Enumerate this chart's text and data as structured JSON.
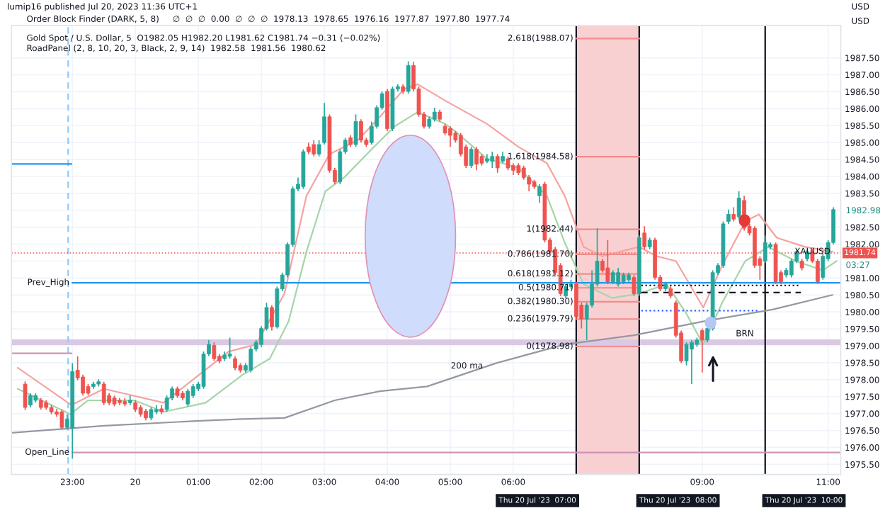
{
  "chart_data": {
    "type": "candlestick",
    "title": "Gold Spot / U.S. Dollar, 5  O1982.05 H1982.20 L1981.62 C1981.74 −0.31 (−0.02%)",
    "subtitle": "RoadPanel (2, 8, 10, 20, 3, Black, 2, 9, 14)  1982.58  1981.56  1980.62",
    "x": [
      "2023-07-19T22:15",
      "2023-07-19T22:20",
      "2023-07-19T22:25",
      "2023-07-19T22:30",
      "2023-07-19T22:35",
      "2023-07-19T22:40",
      "2023-07-19T22:45",
      "2023-07-19T22:50",
      "2023-07-19T22:55",
      "2023-07-19T23:00",
      "2023-07-19T23:05",
      "2023-07-19T23:10",
      "2023-07-19T23:15",
      "2023-07-19T23:20",
      "2023-07-19T23:25",
      "2023-07-19T23:30",
      "2023-07-19T23:35",
      "2023-07-19T23:40",
      "2023-07-19T23:45",
      "2023-07-19T23:50",
      "2023-07-19T23:55",
      "2023-07-20T00:00",
      "2023-07-20T00:05",
      "2023-07-20T00:10",
      "2023-07-20T00:15",
      "2023-07-20T00:20",
      "2023-07-20T00:25",
      "2023-07-20T00:30",
      "2023-07-20T00:35",
      "2023-07-20T00:40",
      "2023-07-20T00:45",
      "2023-07-20T00:50",
      "2023-07-20T00:55",
      "2023-07-20T01:00",
      "2023-07-20T01:05",
      "2023-07-20T01:10",
      "2023-07-20T01:15",
      "2023-07-20T01:20",
      "2023-07-20T01:25",
      "2023-07-20T01:30",
      "2023-07-20T01:35",
      "2023-07-20T01:40",
      "2023-07-20T01:45",
      "2023-07-20T01:50",
      "2023-07-20T01:55",
      "2023-07-20T02:00",
      "2023-07-20T02:05",
      "2023-07-20T02:10",
      "2023-07-20T02:15",
      "2023-07-20T02:20",
      "2023-07-20T02:25",
      "2023-07-20T02:30",
      "2023-07-20T02:35",
      "2023-07-20T02:40",
      "2023-07-20T02:45",
      "2023-07-20T02:50",
      "2023-07-20T02:55",
      "2023-07-20T03:00",
      "2023-07-20T03:05",
      "2023-07-20T03:10",
      "2023-07-20T03:15",
      "2023-07-20T03:20",
      "2023-07-20T03:25",
      "2023-07-20T03:30",
      "2023-07-20T03:35",
      "2023-07-20T03:40",
      "2023-07-20T03:45",
      "2023-07-20T03:50",
      "2023-07-20T03:55",
      "2023-07-20T04:00",
      "2023-07-20T04:05",
      "2023-07-20T04:10",
      "2023-07-20T04:15",
      "2023-07-20T04:20",
      "2023-07-20T04:25",
      "2023-07-20T04:30",
      "2023-07-20T04:35",
      "2023-07-20T04:40",
      "2023-07-20T04:45",
      "2023-07-20T04:50",
      "2023-07-20T04:55",
      "2023-07-20T05:00",
      "2023-07-20T05:05",
      "2023-07-20T05:10",
      "2023-07-20T05:15",
      "2023-07-20T05:20",
      "2023-07-20T05:25",
      "2023-07-20T05:30",
      "2023-07-20T05:35",
      "2023-07-20T05:40",
      "2023-07-20T05:45",
      "2023-07-20T05:50",
      "2023-07-20T05:55",
      "2023-07-20T06:00",
      "2023-07-20T06:05",
      "2023-07-20T06:10",
      "2023-07-20T06:15",
      "2023-07-20T06:20",
      "2023-07-20T06:25",
      "2023-07-20T06:30",
      "2023-07-20T06:35",
      "2023-07-20T06:40",
      "2023-07-20T06:45",
      "2023-07-20T06:50",
      "2023-07-20T06:55",
      "2023-07-20T07:00",
      "2023-07-20T07:05",
      "2023-07-20T07:10",
      "2023-07-20T07:15",
      "2023-07-20T07:20",
      "2023-07-20T07:25",
      "2023-07-20T07:30",
      "2023-07-20T07:35",
      "2023-07-20T07:40",
      "2023-07-20T07:45",
      "2023-07-20T07:50",
      "2023-07-20T07:55",
      "2023-07-20T08:00",
      "2023-07-20T08:05",
      "2023-07-20T08:10",
      "2023-07-20T08:15",
      "2023-07-20T08:20",
      "2023-07-20T08:25",
      "2023-07-20T08:30",
      "2023-07-20T08:35",
      "2023-07-20T08:40",
      "2023-07-20T08:45",
      "2023-07-20T08:50",
      "2023-07-20T08:55",
      "2023-07-20T09:00",
      "2023-07-20T09:05",
      "2023-07-20T09:10",
      "2023-07-20T09:15",
      "2023-07-20T09:20",
      "2023-07-20T09:25",
      "2023-07-20T09:30",
      "2023-07-20T09:35",
      "2023-07-20T09:40",
      "2023-07-20T09:45",
      "2023-07-20T09:50",
      "2023-07-20T09:55",
      "2023-07-20T10:00",
      "2023-07-20T10:05",
      "2023-07-20T10:10",
      "2023-07-20T10:15",
      "2023-07-20T10:20",
      "2023-07-20T10:25",
      "2023-07-20T10:30",
      "2023-07-20T10:35",
      "2023-07-20T10:40",
      "2023-07-20T10:45",
      "2023-07-20T10:50",
      "2023-07-20T10:55",
      "2023-07-20T11:00",
      "2023-07-20T11:05"
    ],
    "ohlc": [
      [
        1977.87,
        1977.95,
        1977.1,
        1977.18
      ],
      [
        1977.25,
        1977.6,
        1977.18,
        1977.53
      ],
      [
        1977.39,
        1977.6,
        1977.32,
        1977.53
      ],
      [
        1977.39,
        1977.46,
        1977.12,
        1977.18
      ],
      [
        1977.32,
        1977.39,
        1977.12,
        1977.18
      ],
      [
        1977.18,
        1977.25,
        1976.98,
        1977.05
      ],
      [
        1977.05,
        1977.14,
        1976.91,
        1976.98
      ],
      [
        1977.05,
        1977.12,
        1976.52,
        1976.59
      ],
      [
        1976.59,
        1976.98,
        1976.52,
        1976.84
      ],
      [
        1976.57,
        1978.49,
        1975.67,
        1978.24
      ],
      [
        1978.28,
        1978.69,
        1977.98,
        1978.05
      ],
      [
        1978.08,
        1978.15,
        1977.53,
        1977.6
      ],
      [
        1977.8,
        1977.87,
        1977.53,
        1977.6
      ],
      [
        1977.8,
        1977.94,
        1977.73,
        1977.87
      ],
      [
        1977.87,
        1978.01,
        1977.8,
        1977.94
      ],
      [
        1977.87,
        1977.94,
        1977.25,
        1977.32
      ],
      [
        1977.53,
        1977.6,
        1977.25,
        1977.32
      ],
      [
        1977.46,
        1977.53,
        1977.21,
        1977.28
      ],
      [
        1977.39,
        1977.46,
        1977.25,
        1977.32
      ],
      [
        1977.36,
        1977.46,
        1977.21,
        1977.28
      ],
      [
        1977.32,
        1977.53,
        1977.25,
        1977.39
      ],
      [
        1977.32,
        1977.39,
        1977.05,
        1977.12
      ],
      [
        1977.18,
        1977.25,
        1976.91,
        1976.98
      ],
      [
        1977.07,
        1977.14,
        1976.8,
        1976.87
      ],
      [
        1976.87,
        1977.18,
        1976.8,
        1977.12
      ],
      [
        1977.05,
        1977.25,
        1976.98,
        1977.12
      ],
      [
        1977.14,
        1977.25,
        1976.98,
        1977.05
      ],
      [
        1977.12,
        1977.53,
        1977.05,
        1977.46
      ],
      [
        1977.46,
        1977.8,
        1977.39,
        1977.73
      ],
      [
        1977.73,
        1977.8,
        1977.46,
        1977.53
      ],
      [
        1977.6,
        1977.66,
        1977.39,
        1977.46
      ],
      [
        1977.28,
        1977.73,
        1977.21,
        1977.66
      ],
      [
        1977.53,
        1977.87,
        1977.46,
        1977.8
      ],
      [
        1977.73,
        1977.94,
        1977.66,
        1977.87
      ],
      [
        1977.8,
        1978.83,
        1977.73,
        1978.76
      ],
      [
        1978.76,
        1979.17,
        1978.69,
        1979.04
      ],
      [
        1979.01,
        1979.1,
        1978.55,
        1978.62
      ],
      [
        1978.69,
        1978.76,
        1978.49,
        1978.55
      ],
      [
        1978.62,
        1978.83,
        1978.55,
        1978.73
      ],
      [
        1978.69,
        1979.24,
        1978.62,
        1978.76
      ],
      [
        1978.62,
        1978.69,
        1978.28,
        1978.35
      ],
      [
        1978.42,
        1978.49,
        1978.21,
        1978.28
      ],
      [
        1978.28,
        1978.49,
        1978.21,
        1978.42
      ],
      [
        1978.28,
        1978.97,
        1978.21,
        1978.9
      ],
      [
        1978.9,
        1979.17,
        1978.83,
        1979.1
      ],
      [
        1979.04,
        1979.58,
        1978.97,
        1979.51
      ],
      [
        1979.51,
        1980.27,
        1979.45,
        1980.13
      ],
      [
        1980.13,
        1980.2,
        1979.45,
        1979.56
      ],
      [
        1979.56,
        1980.75,
        1979.51,
        1980.68
      ],
      [
        1980.68,
        1981.16,
        1980.61,
        1981.09
      ],
      [
        1981.09,
        1982.05,
        1981.02,
        1981.99
      ],
      [
        1981.99,
        1983.7,
        1981.92,
        1983.63
      ],
      [
        1983.63,
        1983.97,
        1983.56,
        1983.77
      ],
      [
        1983.7,
        1984.8,
        1983.63,
        1984.73
      ],
      [
        1984.87,
        1985.0,
        1984.66,
        1984.73
      ],
      [
        1984.94,
        1985.07,
        1984.59,
        1984.66
      ],
      [
        1984.66,
        1985.07,
        1984.59,
        1984.94
      ],
      [
        1985.0,
        1986.17,
        1984.94,
        1985.76
      ],
      [
        1985.76,
        1985.83,
        1984.11,
        1984.18
      ],
      [
        1984.18,
        1984.25,
        1983.77,
        1983.84
      ],
      [
        1983.84,
        1984.8,
        1983.77,
        1984.73
      ],
      [
        1984.73,
        1985.14,
        1984.66,
        1985.07
      ],
      [
        1985.14,
        1985.21,
        1984.87,
        1984.94
      ],
      [
        1984.94,
        1985.83,
        1984.87,
        1985.62
      ],
      [
        1985.62,
        1985.69,
        1985.0,
        1985.07
      ],
      [
        1985.07,
        1985.14,
        1984.87,
        1984.94
      ],
      [
        1985.0,
        1985.62,
        1984.94,
        1985.48
      ],
      [
        1985.48,
        1986.1,
        1985.41,
        1986.03
      ],
      [
        1986.03,
        1986.51,
        1985.97,
        1986.44
      ],
      [
        1986.51,
        1986.58,
        1985.34,
        1985.41
      ],
      [
        1985.41,
        1986.65,
        1985.34,
        1986.58
      ],
      [
        1986.58,
        1986.72,
        1986.51,
        1986.65
      ],
      [
        1986.65,
        1986.72,
        1986.44,
        1986.51
      ],
      [
        1986.51,
        1987.4,
        1986.44,
        1987.27
      ],
      [
        1987.27,
        1987.38,
        1986.51,
        1986.58
      ],
      [
        1986.58,
        1986.65,
        1985.76,
        1985.83
      ],
      [
        1985.83,
        1985.9,
        1985.41,
        1985.48
      ],
      [
        1985.48,
        1985.76,
        1985.41,
        1985.69
      ],
      [
        1985.69,
        1986.03,
        1985.62,
        1985.9
      ],
      [
        1985.9,
        1985.97,
        1985.62,
        1985.69
      ],
      [
        1985.48,
        1985.55,
        1985.21,
        1985.28
      ],
      [
        1985.41,
        1985.48,
        1984.87,
        1985.21
      ],
      [
        1985.28,
        1985.34,
        1985.0,
        1985.07
      ],
      [
        1985.21,
        1985.28,
        1984.59,
        1984.66
      ],
      [
        1984.87,
        1984.94,
        1984.25,
        1984.32
      ],
      [
        1984.32,
        1984.87,
        1984.25,
        1984.8
      ],
      [
        1984.8,
        1984.87,
        1984.18,
        1984.36
      ],
      [
        1984.59,
        1984.66,
        1984.32,
        1984.39
      ],
      [
        1984.45,
        1984.66,
        1984.39,
        1984.52
      ],
      [
        1984.45,
        1984.73,
        1984.25,
        1984.59
      ],
      [
        1984.59,
        1984.66,
        1984.11,
        1984.25
      ],
      [
        1984.45,
        1984.73,
        1984.39,
        1984.59
      ],
      [
        1984.52,
        1984.59,
        1984.18,
        1984.25
      ],
      [
        1984.32,
        1984.39,
        1984.04,
        1984.18
      ],
      [
        1984.32,
        1984.39,
        1984.04,
        1984.11
      ],
      [
        1984.25,
        1984.32,
        1983.9,
        1983.97
      ],
      [
        1983.97,
        1984.04,
        1983.56,
        1983.77
      ],
      [
        1983.84,
        1983.9,
        1983.63,
        1983.7
      ],
      [
        1983.43,
        1983.77,
        1983.22,
        1983.7
      ],
      [
        1983.77,
        1983.84,
        1982.05,
        1982.12
      ],
      [
        1982.12,
        1982.19,
        1981.71,
        1981.78
      ],
      [
        1981.85,
        1981.92,
        1981.09,
        1981.16
      ],
      [
        1981.37,
        1981.44,
        1980.47,
        1980.54
      ],
      [
        1980.47,
        1980.82,
        1980.4,
        1980.75
      ],
      [
        1980.75,
        1980.95,
        1980.68,
        1980.82
      ],
      [
        1980.82,
        1980.89,
        1979.79,
        1979.86
      ],
      [
        1980.2,
        1980.27,
        1979.51,
        1979.79
      ],
      [
        1979.79,
        1980.27,
        1979.17,
        1980.2
      ],
      [
        1980.2,
        1981.23,
        1980.13,
        1980.82
      ],
      [
        1980.82,
        1982.47,
        1980.75,
        1981.5
      ],
      [
        1981.5,
        1981.57,
        1981.16,
        1981.23
      ],
      [
        1981.3,
        1982.12,
        1980.82,
        1980.89
      ],
      [
        1980.89,
        1981.23,
        1980.82,
        1981.16
      ],
      [
        1980.82,
        1981.3,
        1980.75,
        1981.16
      ],
      [
        1980.89,
        1981.16,
        1980.82,
        1981.09
      ],
      [
        1980.95,
        1981.16,
        1980.89,
        1981.09
      ],
      [
        1981.02,
        1981.09,
        1980.47,
        1980.54
      ],
      [
        1980.54,
        1982.26,
        1980.47,
        1982.19
      ],
      [
        1982.33,
        1982.53,
        1981.85,
        1981.92
      ],
      [
        1981.92,
        1982.19,
        1981.85,
        1982.12
      ],
      [
        1982.12,
        1982.19,
        1980.95,
        1981.02
      ],
      [
        1981.02,
        1981.09,
        1980.61,
        1980.68
      ],
      [
        1980.68,
        1980.89,
        1980.61,
        1980.82
      ],
      [
        1980.68,
        1980.75,
        1980.4,
        1980.47
      ],
      [
        1980.27,
        1980.34,
        1979.24,
        1979.31
      ],
      [
        1979.38,
        1979.45,
        1978.49,
        1978.55
      ],
      [
        1978.55,
        1979.1,
        1978.42,
        1979.04
      ],
      [
        1978.9,
        1979.17,
        1977.87,
        1979.1
      ],
      [
        1979.04,
        1979.24,
        1978.97,
        1979.17
      ],
      [
        1979.45,
        1979.51,
        1978.21,
        1979.17
      ],
      [
        1979.17,
        1979.58,
        1979.1,
        1979.51
      ],
      [
        1979.51,
        1981.23,
        1979.45,
        1981.16
      ],
      [
        1981.16,
        1981.44,
        1981.09,
        1981.37
      ],
      [
        1981.37,
        1982.67,
        1981.3,
        1982.6
      ],
      [
        1982.67,
        1983.02,
        1982.6,
        1982.88
      ],
      [
        1982.88,
        1983.09,
        1982.67,
        1982.74
      ],
      [
        1982.81,
        1983.56,
        1982.74,
        1983.36
      ],
      [
        1983.29,
        1983.43,
        1982.4,
        1982.47
      ],
      [
        1982.53,
        1982.6,
        1982.26,
        1982.33
      ],
      [
        1982.47,
        1982.53,
        1981.3,
        1981.37
      ],
      [
        1981.57,
        1981.64,
        1980.95,
        1981.37
      ],
      [
        1981.5,
        1982.26,
        1981.44,
        1982.05
      ],
      [
        1981.92,
        1982.05,
        1981.85,
        1981.99
      ],
      [
        1981.99,
        1982.05,
        1980.82,
        1980.89
      ],
      [
        1981.16,
        1981.23,
        1980.82,
        1980.89
      ],
      [
        1981.09,
        1981.3,
        1981.02,
        1981.23
      ],
      [
        1981.09,
        1981.57,
        1981.02,
        1981.5
      ],
      [
        1981.5,
        1981.85,
        1981.44,
        1981.78
      ],
      [
        1981.5,
        1981.57,
        1981.23,
        1981.3
      ],
      [
        1981.57,
        1981.85,
        1981.5,
        1981.78
      ],
      [
        1981.78,
        1981.85,
        1981.44,
        1981.5
      ],
      [
        1981.5,
        1981.57,
        1980.82,
        1980.89
      ],
      [
        1981.02,
        1981.71,
        1980.95,
        1981.64
      ],
      [
        1981.57,
        1982.12,
        1981.5,
        1982.05
      ],
      [
        1982.05,
        1983.09,
        1981.99,
        1983.02
      ]
    ],
    "colors": [
      "#ef5350",
      "#26a69a",
      "#26a69a",
      "#ef5350",
      "#ef5350",
      "#ef5350",
      "#ef5350",
      "#ef5350",
      "#26a69a",
      "#26a69a",
      "#ef5350",
      "#ef5350",
      "#ef5350",
      "#26a69a",
      "#26a69a",
      "#ef5350",
      "#ef5350",
      "#ef5350",
      "#ef5350",
      "#ef5350",
      "#26a69a",
      "#ef5350",
      "#ef5350",
      "#ef5350",
      "#26a69a",
      "#26a69a",
      "#ef5350",
      "#26a69a",
      "#26a69a",
      "#ef5350",
      "#ef5350",
      "#26a69a",
      "#26a69a",
      "#26a69a",
      "#26a69a",
      "#26a69a",
      "#ef5350",
      "#ef5350",
      "#26a69a",
      "#26a69a",
      "#ef5350",
      "#ef5350",
      "#26a69a",
      "#26a69a",
      "#26a69a",
      "#26a69a",
      "#26a69a",
      "#ef5350",
      "#26a69a",
      "#26a69a",
      "#26a69a",
      "#26a69a",
      "#26a69a",
      "#26a69a",
      "#ef5350",
      "#ef5350",
      "#26a69a",
      "#26a69a",
      "#ef5350",
      "#ef5350",
      "#26a69a",
      "#26a69a",
      "#ef5350",
      "#26a69a",
      "#ef5350",
      "#ef5350",
      "#26a69a",
      "#26a69a",
      "#26a69a",
      "#ef5350",
      "#26a69a",
      "#26a69a",
      "#ef5350",
      "#26a69a",
      "#ef5350",
      "#ef5350",
      "#ef5350",
      "#26a69a",
      "#26a69a",
      "#ef5350",
      "#ef5350",
      "#ef5350",
      "#ef5350",
      "#ef5350",
      "#ef5350",
      "#26a69a",
      "#ef5350",
      "#ef5350",
      "#26a69a",
      "#26a69a",
      "#ef5350",
      "#26a69a",
      "#ef5350",
      "#ef5350",
      "#ef5350",
      "#ef5350",
      "#ef5350",
      "#ef5350",
      "#26a69a",
      "#ef5350",
      "#ef5350",
      "#ef5350",
      "#ef5350",
      "#26a69a",
      "#26a69a",
      "#ef5350",
      "#ef5350",
      "#26a69a",
      "#26a69a",
      "#26a69a",
      "#ef5350",
      "#ef5350",
      "#26a69a",
      "#26a69a",
      "#26a69a",
      "#26a69a",
      "#ef5350",
      "#26a69a",
      "#ef5350",
      "#26a69a",
      "#ef5350",
      "#ef5350",
      "#26a69a",
      "#ef5350",
      "#ef5350",
      "#ef5350",
      "#26a69a",
      "#26a69a",
      "#26a69a",
      "#ef5350",
      "#26a69a",
      "#26a69a",
      "#26a69a",
      "#26a69a",
      "#26a69a",
      "#ef5350",
      "#26a69a",
      "#ef5350",
      "#ef5350",
      "#ef5350",
      "#ef5350",
      "#26a69a",
      "#26a69a",
      "#ef5350",
      "#ef5350",
      "#26a69a",
      "#26a69a",
      "#26a69a",
      "#ef5350",
      "#26a69a",
      "#ef5350",
      "#ef5350",
      "#26a69a",
      "#26a69a",
      "#26a69a"
    ],
    "series": [
      {
        "type": "line",
        "color": "#f5a3a0",
        "x": [
          "2023-07-19T22:08",
          "2023-07-19T22:59",
          "2023-07-19T23:30",
          "2023-07-20T00:27",
          "2023-07-20T00:58",
          "2023-07-20T01:29",
          "2023-07-20T01:55",
          "2023-07-20T02:22",
          "2023-07-20T02:43",
          "2023-07-20T03:05",
          "2023-07-20T03:32",
          "2023-07-20T03:53",
          "2023-07-20T04:16",
          "2023-07-20T04:29",
          "2023-07-20T04:55",
          "2023-07-20T05:35",
          "2023-07-20T06:05",
          "2023-07-20T06:32",
          "2023-07-20T06:49",
          "2023-07-20T07:07",
          "2023-07-20T07:25",
          "2023-07-20T07:42",
          "2023-07-20T08:00",
          "2023-07-20T08:17",
          "2023-07-20T08:35",
          "2023-07-20T09:01",
          "2023-07-20T09:19",
          "2023-07-20T09:41",
          "2023-07-20T09:54",
          "2023-07-20T10:11",
          "2023-07-20T10:38",
          "2023-07-20T11:04"
        ],
        "values": [
          1978.35,
          1977.25,
          1977.73,
          1977.32,
          1978.08,
          1978.83,
          1979.04,
          1980.54,
          1983.43,
          1984.66,
          1985.07,
          1985.76,
          1986.58,
          1986.72,
          1986.24,
          1985.55,
          1984.87,
          1984.39,
          1983.43,
          1981.92,
          1981.64,
          1981.78,
          1981.92,
          1981.64,
          1981.5,
          1980.13,
          1981.37,
          1982.67,
          1982.88,
          1982.19,
          1981.92,
          1981.78
        ]
      },
      {
        "type": "line",
        "color": "#a5d6a7",
        "x": [
          "2023-07-19T22:08",
          "2023-07-19T22:58",
          "2023-07-19T23:15",
          "2023-07-19T23:59",
          "2023-07-20T00:27",
          "2023-07-20T01:07",
          "2023-07-20T01:42",
          "2023-07-20T02:08",
          "2023-07-20T02:26",
          "2023-07-20T02:43",
          "2023-07-20T03:01",
          "2023-07-20T03:19",
          "2023-07-20T03:45",
          "2023-07-20T04:07",
          "2023-07-20T04:29",
          "2023-07-20T04:55",
          "2023-07-20T05:04",
          "2023-07-20T05:35",
          "2023-07-20T06:05",
          "2023-07-20T06:32",
          "2023-07-20T06:49",
          "2023-07-20T07:07",
          "2023-07-20T07:34",
          "2023-07-20T08:00",
          "2023-07-20T08:26",
          "2023-07-20T08:44",
          "2023-07-20T09:01",
          "2023-07-20T09:19",
          "2023-07-20T09:41",
          "2023-07-20T10:03",
          "2023-07-20T10:29",
          "2023-07-20T10:55",
          "2023-07-20T11:08"
        ],
        "values": [
          1977.73,
          1976.98,
          1977.39,
          1977.39,
          1977.05,
          1977.32,
          1978.14,
          1978.62,
          1979.72,
          1981.78,
          1983.56,
          1983.97,
          1984.8,
          1985.48,
          1985.9,
          1985.55,
          1985.35,
          1984.52,
          1984.25,
          1983.43,
          1982.05,
          1980.82,
          1980.41,
          1980.54,
          1980.82,
          1980.0,
          1979.04,
          1980.27,
          1981.5,
          1981.92,
          1981.5,
          1981.23,
          1981.5
        ]
      },
      {
        "type": "line",
        "color": "#9598a1",
        "x": [
          "2023-07-19T22:02",
          "2023-07-19T23:30",
          "2023-07-20T00:58",
          "2023-07-20T01:42",
          "2023-07-20T02:22",
          "2023-07-20T03:10",
          "2023-07-20T03:53",
          "2023-07-20T04:38",
          "2023-07-20T05:44",
          "2023-07-20T06:49",
          "2023-07-20T07:55",
          "2023-07-20T09:01",
          "2023-07-20T10:07",
          "2023-07-20T11:04"
        ],
        "values": [
          1976.43,
          1976.64,
          1976.78,
          1976.84,
          1976.87,
          1977.39,
          1977.66,
          1977.8,
          1978.49,
          1979.04,
          1979.31,
          1979.72,
          1980.07,
          1980.5
        ]
      },
      {
        "type": "line",
        "color": "#2196f3",
        "x": [
          "2023-07-19T23:00",
          "2023-07-20T11:12"
        ],
        "values": [
          1980.86,
          1980.86
        ]
      },
      {
        "type": "line",
        "color": "#2196f3",
        "x": [
          "2023-07-19T22:02",
          "2023-07-19T22:59"
        ],
        "values": [
          1984.37,
          1984.37
        ]
      },
      {
        "type": "line",
        "color": "#ce93b8",
        "x": [
          "2023-07-19T22:02",
          "2023-07-19T22:59"
        ],
        "values": [
          1978.78,
          1978.78
        ]
      },
      {
        "type": "line",
        "color": "#ce93b8",
        "x": [
          "2023-07-19T23:00",
          "2023-07-20T11:12"
        ],
        "values": [
          1975.85,
          1975.85
        ]
      },
      {
        "type": "line",
        "color": "#131722",
        "line_style": "dotted",
        "x": [
          "2023-07-20T08:02",
          "2023-07-20T10:34"
        ],
        "values": [
          1980.78,
          1980.78
        ]
      },
      {
        "type": "line",
        "color": "#131722",
        "line_style": "dashed",
        "x": [
          "2023-07-20T08:02",
          "2023-07-20T10:34"
        ],
        "values": [
          1980.57,
          1980.57
        ]
      },
      {
        "type": "line",
        "color": "#2962ff",
        "line_style": "dotted",
        "x": [
          "2023-07-20T08:02",
          "2023-07-20T09:54"
        ],
        "values": [
          1980.04,
          1980.04
        ]
      },
      {
        "type": "line",
        "color": "#f28c8c",
        "x": [
          "2023-07-20T07:00",
          "2023-07-20T08:00"
        ],
        "values": [
          1988.07,
          1988.07
        ]
      },
      {
        "type": "line",
        "color": "#f28c8c",
        "x": [
          "2023-07-20T07:00",
          "2023-07-20T08:00"
        ],
        "values": [
          1984.58,
          1984.58
        ]
      },
      {
        "type": "line",
        "color": "#f28c8c",
        "x": [
          "2023-07-20T07:00",
          "2023-07-20T08:00"
        ],
        "values": [
          1982.44,
          1982.44
        ]
      },
      {
        "type": "line",
        "color": "#f28c8c",
        "x": [
          "2023-07-20T07:00",
          "2023-07-20T08:00"
        ],
        "values": [
          1981.7,
          1981.7
        ]
      },
      {
        "type": "line",
        "color": "#f28c8c",
        "x": [
          "2023-07-20T07:00",
          "2023-07-20T08:00"
        ],
        "values": [
          1981.12,
          1981.12
        ]
      },
      {
        "type": "line",
        "color": "#f28c8c",
        "x": [
          "2023-07-20T07:00",
          "2023-07-20T08:00"
        ],
        "values": [
          1980.71,
          1980.71
        ]
      },
      {
        "type": "line",
        "color": "#f28c8c",
        "x": [
          "2023-07-20T07:00",
          "2023-07-20T08:00"
        ],
        "values": [
          1980.3,
          1980.3
        ]
      },
      {
        "type": "line",
        "color": "#f28c8c",
        "x": [
          "2023-07-20T07:00",
          "2023-07-20T08:00"
        ],
        "values": [
          1979.79,
          1979.79
        ]
      },
      {
        "type": "line",
        "color": "#f28c8c",
        "x": [
          "2023-07-20T07:00",
          "2023-07-20T08:00"
        ],
        "values": [
          1978.98,
          1978.98
        ]
      }
    ],
    "xlim": [
      "2023-07-19T22:02",
      "2023-07-20T11:12"
    ],
    "xticks": [
      {
        "value": "2023-07-19T23:00",
        "label": "23:00"
      },
      {
        "value": "2023-07-20T00:00",
        "label": "20"
      },
      {
        "value": "2023-07-20T01:00",
        "label": "01:00"
      },
      {
        "value": "2023-07-20T02:00",
        "label": "02:00"
      },
      {
        "value": "2023-07-20T03:00",
        "label": "03:00"
      },
      {
        "value": "2023-07-20T04:00",
        "label": "04:00"
      },
      {
        "value": "2023-07-20T05:00",
        "label": "05:00"
      },
      {
        "value": "2023-07-20T06:00",
        "label": "06:00"
      },
      {
        "value": "2023-07-20T09:00",
        "label": "09:00"
      },
      {
        "value": "2023-07-20T11:00",
        "label": "11:00"
      }
    ],
    "ylim": [
      1975.2,
      1988.45
    ],
    "yticks": [
      {
        "value": 1975.5,
        "label": "1975.50"
      },
      {
        "value": 1976,
        "label": "1976.00"
      },
      {
        "value": 1976.5,
        "label": "1976.50"
      },
      {
        "value": 1977,
        "label": "1977.00"
      },
      {
        "value": 1977.5,
        "label": "1977.50"
      },
      {
        "value": 1978,
        "label": "1978.00"
      },
      {
        "value": 1978.5,
        "label": "1978.50"
      },
      {
        "value": 1979,
        "label": "1979.00"
      },
      {
        "value": 1979.5,
        "label": "1979.50"
      },
      {
        "value": 1980,
        "label": "1980.00"
      },
      {
        "value": 1980.5,
        "label": "1980.50"
      },
      {
        "value": 1981,
        "label": "1981.00"
      },
      {
        "value": 1981.5,
        "label": null
      },
      {
        "value": 1982,
        "label": "1982.00"
      },
      {
        "value": 1982.5,
        "label": "1982.50"
      },
      {
        "value": 1983,
        "label": null
      },
      {
        "value": 1983.5,
        "label": "1983.50"
      },
      {
        "value": 1984,
        "label": "1984.00"
      },
      {
        "value": 1984.5,
        "label": "1984.50"
      },
      {
        "value": 1985,
        "label": "1985.00"
      },
      {
        "value": 1985.5,
        "label": "1985.50"
      },
      {
        "value": 1986,
        "label": "1986.00"
      },
      {
        "value": 1986.5,
        "label": "1986.50"
      },
      {
        "value": 1987,
        "label": "1987.00"
      },
      {
        "value": 1987.5,
        "label": "1987.50"
      }
    ],
    "grid": true,
    "ref_lines": [
      {
        "axis": "x",
        "value": "2023-07-19T22:56",
        "color": "#90caf9",
        "line_style": "dashed"
      },
      {
        "axis": "x",
        "value": "2023-07-20T07:00",
        "label": "Thu 20 Jul '23  07:00",
        "color": "#131722"
      },
      {
        "axis": "x",
        "value": "2023-07-20T08:00",
        "label": "Thu 20 Jul '23  08:00",
        "color": "#131722"
      },
      {
        "axis": "x",
        "value": "2023-07-20T10:00",
        "label": "Thu 20 Jul '23  10:00",
        "color": "#131722"
      },
      {
        "axis": "y",
        "value": 1981.74,
        "label": "1981.74",
        "color": "#ef5350",
        "line_style": "dotted"
      }
    ],
    "bands": [
      {
        "axis": "x",
        "from": "2023-07-20T07:00",
        "to": "2023-07-20T08:00",
        "color": "#f9d0d2"
      },
      {
        "axis": "y",
        "from": 1979.02,
        "to": 1979.19,
        "color": "#d9c9e3"
      }
    ],
    "annotations": [
      "lumip16 published Jul 20, 2023 11:36 UTC+1",
      "Order Block Finder (DARK, 5, 8)     ∅  ∅  ∅  0.00  ∅  ∅  ∅  1978.13  1978.65  1976.16  1977.87  1977.80  1977.74",
      "USD",
      "USD",
      {
        "text": "2.618(1988.07)",
        "x": "2023-07-20T07:00",
        "y": 1988.07
      },
      {
        "text": "1.618(1984.58)",
        "x": "2023-07-20T07:00",
        "y": 1984.58
      },
      {
        "text": "1(1982.44)",
        "x": "2023-07-20T07:00",
        "y": 1982.44
      },
      {
        "text": "0.786(1981.70)",
        "x": "2023-07-20T07:00",
        "y": 1981.7
      },
      {
        "text": "0.618(1981.12)",
        "x": "2023-07-20T07:00",
        "y": 1981.12
      },
      {
        "text": "0.5(1980.71)",
        "x": "2023-07-20T07:00",
        "y": 1980.71
      },
      {
        "text": "0.382(1980.30)",
        "x": "2023-07-20T07:00",
        "y": 1980.3
      },
      {
        "text": "0.236(1979.79)",
        "x": "2023-07-20T07:00",
        "y": 1979.79
      },
      {
        "text": "0(1978.98)",
        "x": "2023-07-20T07:00",
        "y": 1978.98
      },
      {
        "text": "Prev_High",
        "x": "2023-07-19T23:00",
        "y": 1980.86
      },
      {
        "text": "Open_Line",
        "x": "2023-07-19T23:00",
        "y": 1975.85
      },
      {
        "text": "200 ma",
        "x": "2023-07-20T05:34",
        "y": 1978.4
      },
      {
        "text": "BRN",
        "x": "2023-07-20T09:52",
        "y": 1979.35
      },
      {
        "text": "XAUUSD",
        "x": "2023-07-20T11:05",
        "y": 1981.78
      },
      {
        "text": "1982.98",
        "x": "2023-07-20T11:12",
        "y": 1982.98
      },
      {
        "text": "03:27",
        "x": "2023-07-20T11:12",
        "y": 1981.37
      }
    ]
  }
}
